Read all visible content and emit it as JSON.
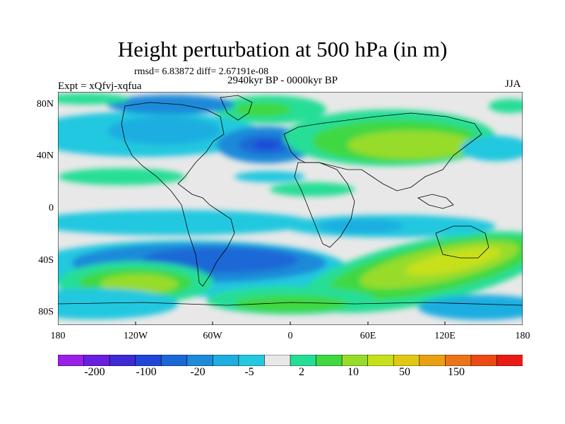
{
  "title": "Height perturbation at 500 hPa (in m)",
  "stats": "rmsd= 6.83872 diff= 2.67191e-08",
  "period": "2940kyr BP - 0000kyr BP",
  "experiment": "Expt = xQfvj-xqfua",
  "season": "JJA",
  "axes": {
    "y_ticks": [
      "80N",
      "40N",
      "0",
      "40S",
      "80S"
    ],
    "x_ticks": [
      "180",
      "120W",
      "60W",
      "0",
      "60E",
      "120E",
      "180"
    ]
  },
  "colorbar": {
    "labels": [
      "-200",
      "-100",
      "-20",
      "-5",
      "2",
      "10",
      "50",
      "150"
    ],
    "colors": [
      "#9b1fe8",
      "#6a1ee0",
      "#3e2ad6",
      "#1f46d8",
      "#1c67d6",
      "#1e8ad9",
      "#1faee0",
      "#24c8df",
      "#e8e8e8",
      "#25de95",
      "#40d843",
      "#97dc2a",
      "#c8e01c",
      "#e1c814",
      "#eaa012",
      "#ec7418",
      "#ec4a14",
      "#e81c14"
    ]
  },
  "palette": {
    "neutral": "#e8e8e8",
    "coast": "#000000"
  }
}
